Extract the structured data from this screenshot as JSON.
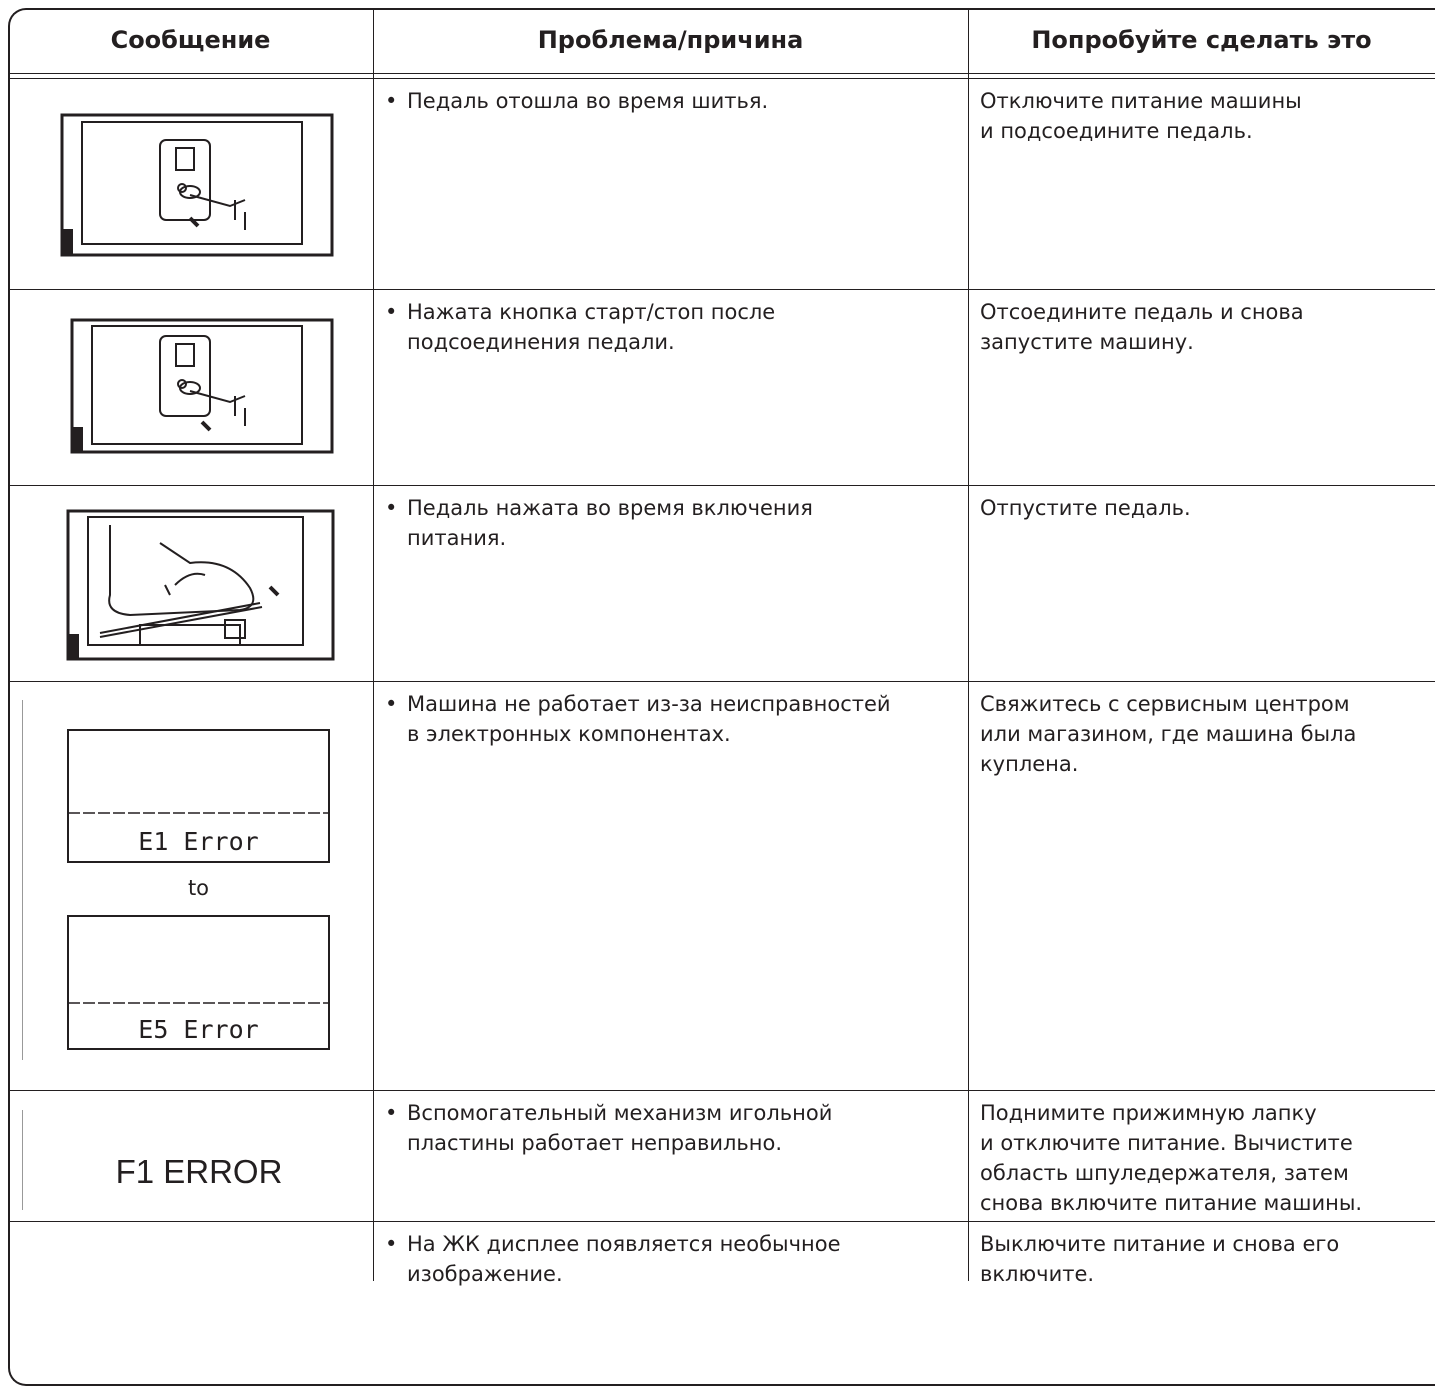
{
  "header": {
    "columns": [
      "Сообщение",
      "Проблема/причина",
      "Попробуйте сделать это"
    ]
  },
  "rows": [
    {
      "cause": [
        "Педаль отошла во время шитья."
      ],
      "action": [
        "Отключите питание машины",
        "и подсоедините педаль."
      ]
    },
    {
      "cause": [
        "Нажата кнопка старт/стоп после",
        "подсоединения педали."
      ],
      "action": [
        "Отсоедините педаль и снова",
        "запустите машину."
      ]
    },
    {
      "cause": [
        "Педаль нажата во время включения",
        "питания."
      ],
      "action": [
        "Отпустите педаль."
      ]
    },
    {
      "message": {
        "first": "E1 Error",
        "between": "to",
        "last": "E5 Error"
      },
      "cause": [
        "Машина не работает из-за неисправностей",
        "в электронных компонентах."
      ],
      "action": [
        "Свяжитесь с сервисным центром",
        "или магазином, где машина была",
        "куплена."
      ]
    },
    {
      "message": "F1 ERROR",
      "cause": [
        "Вспомогательный механизм игольной",
        "пластины работает неправильно."
      ],
      "action": [
        "Поднимите прижимную лапку",
        "и отключите питание. Вычистите",
        "область шпуледержателя, затем",
        "снова включите питание машины."
      ]
    },
    {
      "cause": [
        "На ЖК дисплее появляется необычное",
        "изображение."
      ],
      "action": [
        "Выключите питание и снова его",
        "включите."
      ]
    }
  ]
}
